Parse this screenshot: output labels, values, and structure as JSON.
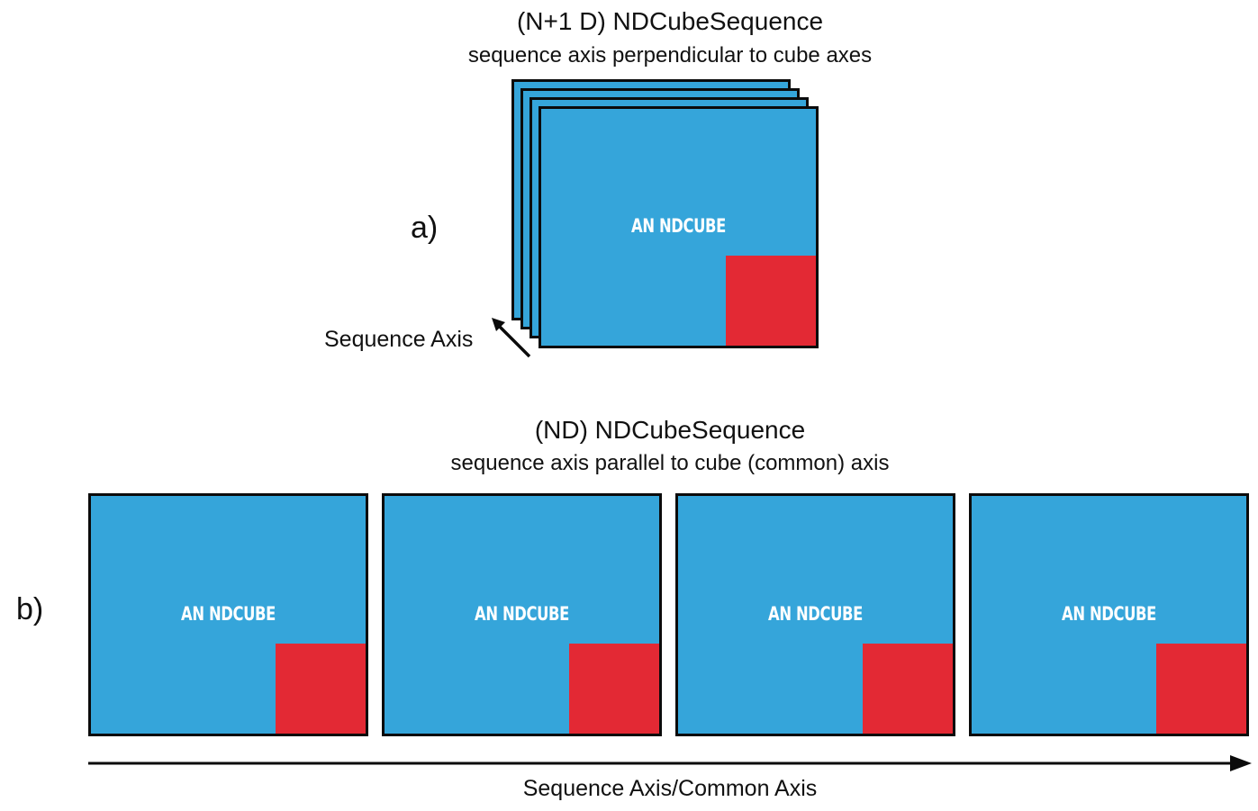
{
  "panel_a": {
    "label": "a)",
    "title": "(N+1 D) NDCubeSequence",
    "subtitle": "sequence axis perpendicular to cube axes",
    "axis_label": "Sequence Axis",
    "cube_label": "AN NDCUBE",
    "stack_layers": 4
  },
  "panel_b": {
    "label": "b)",
    "title": "(ND) NDCubeSequence",
    "subtitle": "sequence axis parallel to cube (common) axis",
    "axis_label": "Sequence Axis/Common Axis",
    "cubes": [
      {
        "label": "AN NDCUBE"
      },
      {
        "label": "AN NDCUBE"
      },
      {
        "label": "AN NDCUBE"
      },
      {
        "label": "AN NDCUBE"
      }
    ]
  },
  "colors": {
    "cube_fill": "#35a5da",
    "corner_fill": "#e32934",
    "border": "#0b0b0b",
    "text": "#111111",
    "cube_text": "#ffffff"
  }
}
